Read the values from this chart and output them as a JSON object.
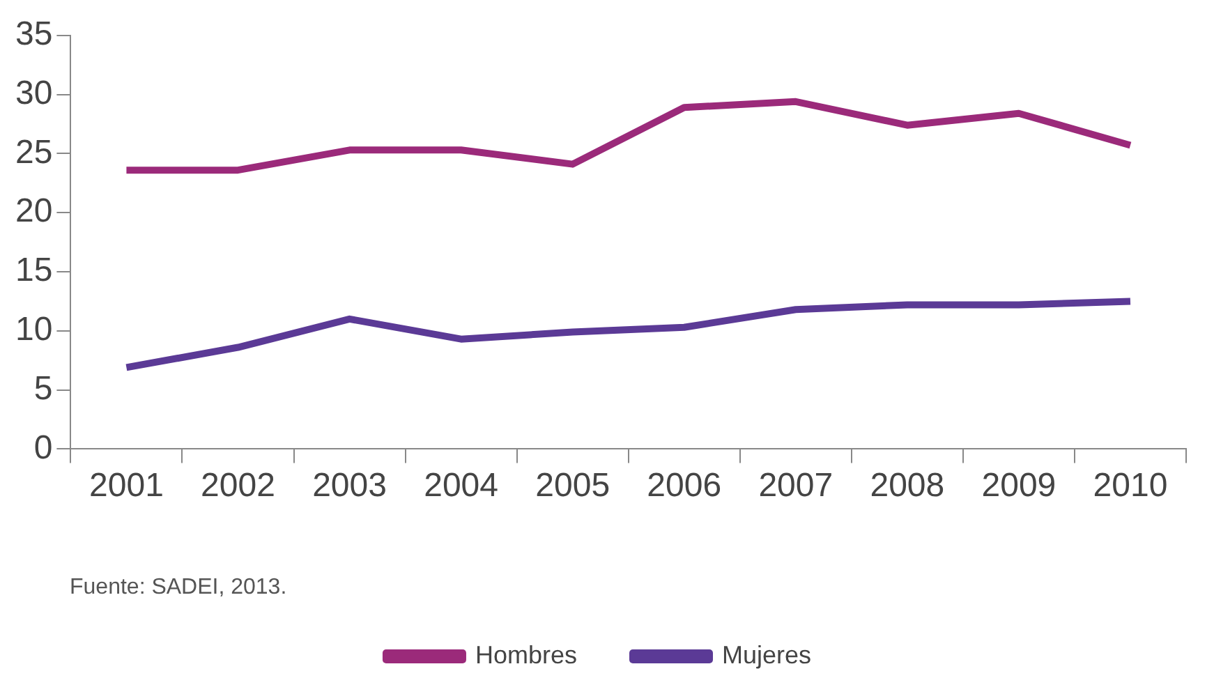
{
  "chart_data": {
    "type": "line",
    "categories": [
      "2001",
      "2002",
      "2003",
      "2004",
      "2005",
      "2006",
      "2007",
      "2008",
      "2009",
      "2010"
    ],
    "series": [
      {
        "name": "Hombres",
        "color": "#9b2a7a",
        "values": [
          23.6,
          23.6,
          25.3,
          25.3,
          24.1,
          28.9,
          29.4,
          27.4,
          28.4,
          25.7
        ]
      },
      {
        "name": "Mujeres",
        "color": "#5b3a96",
        "values": [
          6.9,
          8.6,
          11.0,
          9.3,
          9.9,
          10.3,
          11.8,
          12.2,
          12.2,
          12.5
        ]
      }
    ],
    "ylim": [
      0,
      35
    ],
    "yticks": [
      0,
      5,
      10,
      15,
      20,
      25,
      30,
      35
    ],
    "grid": false,
    "legend": "bottom",
    "marker": "none",
    "line_style": "solid",
    "annotations": [
      "Fuente: SADEI, 2013."
    ]
  }
}
